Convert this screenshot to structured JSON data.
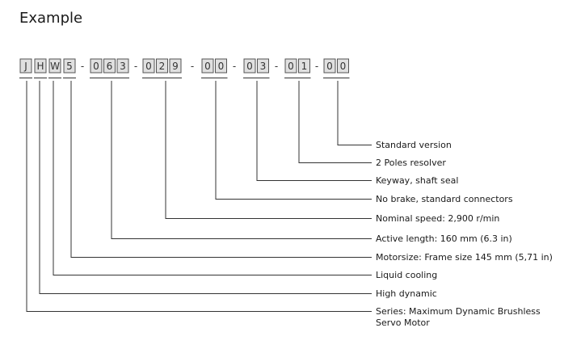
{
  "title": "Example",
  "code_groups": [
    {
      "chars": [
        "J"
      ],
      "label": "Series: Maximum Dynamic  Brushless",
      "label2": "Servo Motor"
    },
    {
      "chars": [
        "H"
      ],
      "label": "High dynamic"
    },
    {
      "chars": [
        "W"
      ],
      "label": "Liquid cooling"
    },
    {
      "chars": [
        "5"
      ],
      "label": "Motorsize: Frame size 145 mm (5,71 in)"
    },
    {
      "chars": [
        "0",
        "6",
        "3"
      ],
      "label": "Active length: 160 mm (6.3 in)"
    },
    {
      "chars": [
        "0",
        "2",
        "9"
      ],
      "label": "Nominal speed: 2,900 r/min"
    },
    {
      "chars": [
        "0",
        "0"
      ],
      "label": "No brake, standard connectors"
    },
    {
      "chars": [
        "0",
        "3"
      ],
      "label": "Keyway, shaft seal"
    },
    {
      "chars": [
        "0",
        "1"
      ],
      "label": "2 Poles resolver"
    },
    {
      "chars": [
        "0",
        "0"
      ],
      "label": "Standard version"
    }
  ],
  "separator": "-"
}
